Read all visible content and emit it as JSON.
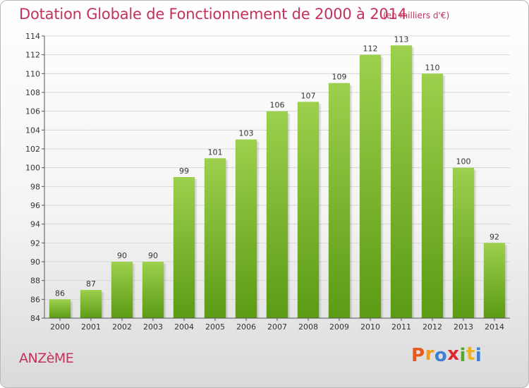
{
  "header": {
    "title": "Dotation Globale de Fonctionnement de 2000 à 2014",
    "unit": "(en milliers d'€)"
  },
  "footer": {
    "town": "ANZèME",
    "logo": [
      "P",
      "r",
      "o",
      "x",
      "i",
      "t",
      "i"
    ],
    "logo_colors": [
      "#e85a1c",
      "#f29a1d",
      "#3d7fd1",
      "#e0262e",
      "#5aa72f",
      "#f0b21c",
      "#3d7fd1"
    ]
  },
  "colors": {
    "bar_top": "#9dd04c",
    "bar_bottom": "#5b9b14",
    "accent": "#c4315a",
    "grid": "#d6d6d6"
  },
  "chart_data": {
    "type": "bar",
    "title": "Dotation Globale de Fonctionnement de 2000 à 2014",
    "subtitle": "(en milliers d'€)",
    "categories": [
      "2000",
      "2001",
      "2002",
      "2003",
      "2004",
      "2005",
      "2006",
      "2007",
      "2008",
      "2009",
      "2010",
      "2011",
      "2012",
      "2013",
      "2014"
    ],
    "values": [
      86,
      87,
      90,
      90,
      99,
      101,
      103,
      106,
      107,
      109,
      112,
      113,
      110,
      100,
      92
    ],
    "ylim": [
      84,
      114
    ],
    "yticks": [
      84,
      86,
      88,
      90,
      92,
      94,
      96,
      98,
      100,
      102,
      104,
      106,
      108,
      110,
      112,
      114
    ],
    "grid": true,
    "legend": "none"
  }
}
